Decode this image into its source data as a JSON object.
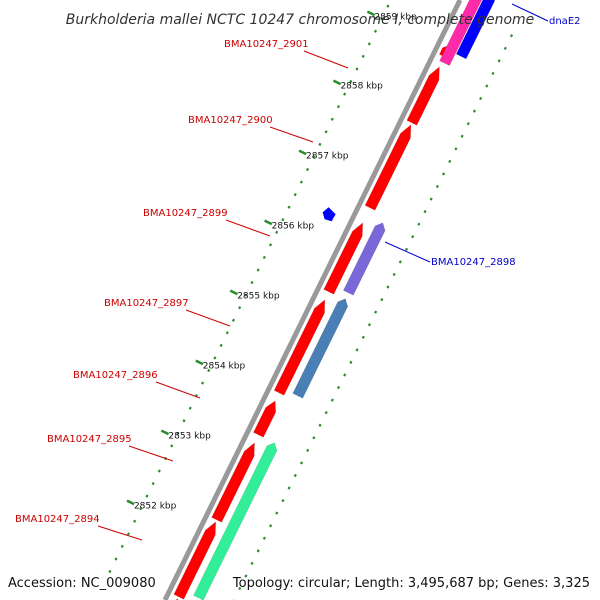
{
  "title": "Burkholderia mallei NCTC 10247 chromosome I, complete genome",
  "footer": {
    "accession": "Accession: NC_009080",
    "summary": "Topology: circular; Length: 3,495,687 bp; Genes: 3,325"
  },
  "colors": {
    "forward_gene": "#ff0000",
    "reverse_gene": "#0000ff",
    "label_forward": "#cc0000",
    "label_reverse": "#0000cc",
    "tick": "#2a8c2a",
    "backbone": "#999999"
  },
  "ticks": [
    {
      "label": "2852 kbp"
    },
    {
      "label": "2853 kbp"
    },
    {
      "label": "2854 kbp"
    },
    {
      "label": "2855 kbp"
    },
    {
      "label": "2856 kbp"
    },
    {
      "label": "2857 kbp"
    },
    {
      "label": "2858 kbp"
    },
    {
      "label": "2859 kbp"
    }
  ],
  "gene_labels": [
    {
      "text": "BMA10247_2901",
      "strand": "forward"
    },
    {
      "text": "BMA10247_2900",
      "strand": "forward"
    },
    {
      "text": "BMA10247_2899",
      "strand": "forward"
    },
    {
      "text": "BMA10247_2897",
      "strand": "forward"
    },
    {
      "text": "BMA10247_2896",
      "strand": "forward"
    },
    {
      "text": "BMA10247_2895",
      "strand": "forward"
    },
    {
      "text": "BMA10247_2894",
      "strand": "forward"
    },
    {
      "text": "BMA10247_2898",
      "strand": "reverse"
    },
    {
      "text": "dnaE2",
      "strand": "reverse"
    }
  ],
  "features": [
    {
      "name": "feature-red-1",
      "color": "#ff0000"
    },
    {
      "name": "feature-red-2",
      "color": "#ff0000"
    },
    {
      "name": "feature-red-3",
      "color": "#ff0000"
    },
    {
      "name": "feature-red-4",
      "color": "#ff0000"
    },
    {
      "name": "feature-red-5",
      "color": "#ff0000"
    },
    {
      "name": "feature-red-6",
      "color": "#ff0000"
    },
    {
      "name": "feature-red-7",
      "color": "#ff0000"
    },
    {
      "name": "feature-red-8",
      "color": "#ff0000"
    },
    {
      "name": "feature-red-9",
      "color": "#ff0000"
    },
    {
      "name": "feature-purple",
      "color": "#7b68d8"
    },
    {
      "name": "feature-steelblue",
      "color": "#4a7fb5"
    },
    {
      "name": "feature-seagreen",
      "color": "#33ee99"
    },
    {
      "name": "feature-blue-small",
      "color": "#0000ff"
    },
    {
      "name": "feature-blue-top",
      "color": "#0000ff"
    },
    {
      "name": "feature-magenta",
      "color": "#ff2aa8"
    }
  ]
}
